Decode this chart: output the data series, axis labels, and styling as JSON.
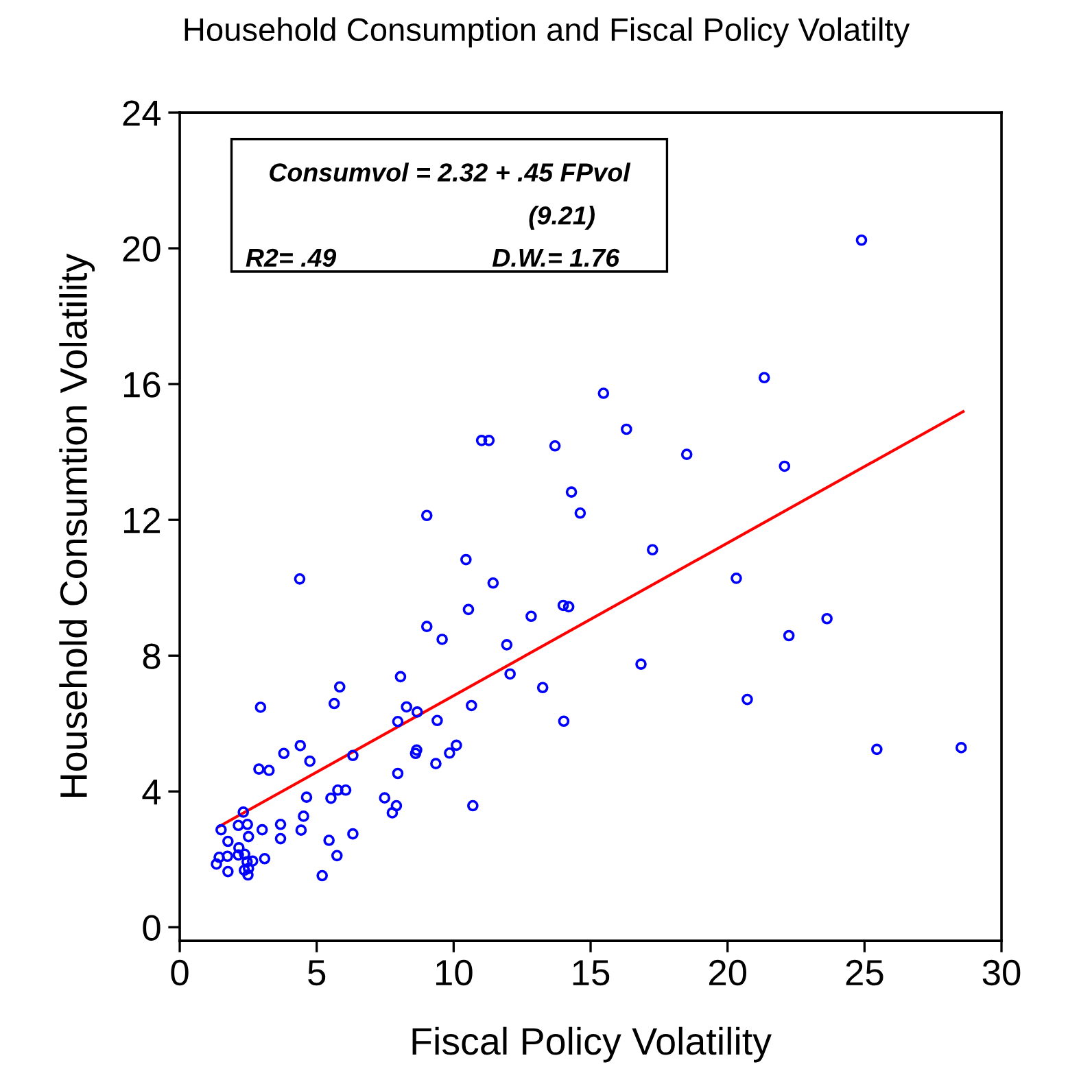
{
  "chart_data": {
    "type": "scatter",
    "title": "Household Consumption and Fiscal Policy Volatilty",
    "xlabel": "Fiscal Policy Volatility",
    "ylabel": "Household Consumtion Volatility",
    "annotations": [
      "Consumvol = 2.32 + .45 FPvol",
      "(9.21)",
      "R2= .49",
      "D.W.= 1.76"
    ],
    "xlim": [
      0,
      30
    ],
    "ylim": [
      -0.4,
      24
    ],
    "xticks": [
      0,
      5,
      10,
      15,
      20,
      25,
      30
    ],
    "yticks": [
      0,
      4,
      8,
      12,
      16,
      20,
      24
    ],
    "grid": false,
    "series": [
      {
        "marker": "circle",
        "color": "#0000ff",
        "x": [
          24.89,
          21.34,
          15.47,
          16.31,
          13.7,
          18.51,
          22.08,
          14.3,
          14.62,
          17.26,
          20.32,
          14.0,
          14.2,
          23.63,
          22.24,
          16.84,
          20.72,
          14.02,
          25.45,
          28.53,
          11.02,
          11.29,
          9.02,
          10.45,
          11.44,
          10.54,
          12.83,
          9.02,
          9.58,
          11.94,
          8.06,
          12.06,
          13.25,
          8.28,
          8.67,
          7.96,
          9.4,
          10.65,
          8.65,
          8.61,
          10.1,
          9.85,
          9.35,
          7.96,
          7.48,
          7.91,
          7.76,
          10.7,
          4.38,
          2.95,
          5.64,
          5.84,
          4.4,
          3.8,
          4.75,
          2.89,
          3.26,
          6.32,
          4.63,
          4.52,
          5.52,
          5.77,
          6.06,
          4.43,
          5.45,
          6.32,
          5.74,
          5.2,
          3.68,
          3.68,
          3.1,
          3.01,
          2.32,
          2.14,
          2.47,
          2.51,
          1.51,
          1.76,
          2.16,
          2.14,
          1.74,
          1.44,
          2.37,
          1.34,
          1.76,
          2.46,
          2.66,
          2.36,
          2.49,
          2.51
        ],
        "values": [
          20.24,
          16.19,
          15.73,
          14.67,
          14.18,
          13.93,
          13.58,
          12.82,
          12.2,
          11.12,
          10.28,
          9.48,
          9.44,
          9.09,
          8.59,
          7.75,
          6.71,
          6.07,
          5.24,
          5.29,
          14.34,
          14.34,
          12.13,
          10.83,
          10.14,
          9.36,
          9.16,
          8.86,
          8.48,
          8.32,
          7.38,
          7.46,
          7.06,
          6.49,
          6.34,
          6.06,
          6.09,
          6.53,
          5.22,
          5.12,
          5.36,
          5.13,
          4.82,
          4.53,
          3.81,
          3.58,
          3.37,
          3.58,
          10.26,
          6.48,
          6.59,
          7.08,
          5.35,
          5.12,
          4.89,
          4.66,
          4.62,
          5.06,
          3.83,
          3.27,
          3.8,
          4.04,
          4.04,
          2.86,
          2.56,
          2.75,
          2.11,
          1.52,
          3.03,
          2.61,
          2.02,
          2.87,
          3.39,
          3.0,
          3.03,
          2.67,
          2.87,
          2.53,
          2.34,
          2.13,
          2.09,
          2.06,
          2.15,
          1.86,
          1.64,
          1.93,
          1.95,
          1.68,
          1.54,
          1.73
        ]
      },
      {
        "type": "line",
        "color": "#ff0000",
        "x": [
          1.42,
          28.6
        ],
        "values": [
          2.96,
          15.19
        ]
      }
    ]
  }
}
